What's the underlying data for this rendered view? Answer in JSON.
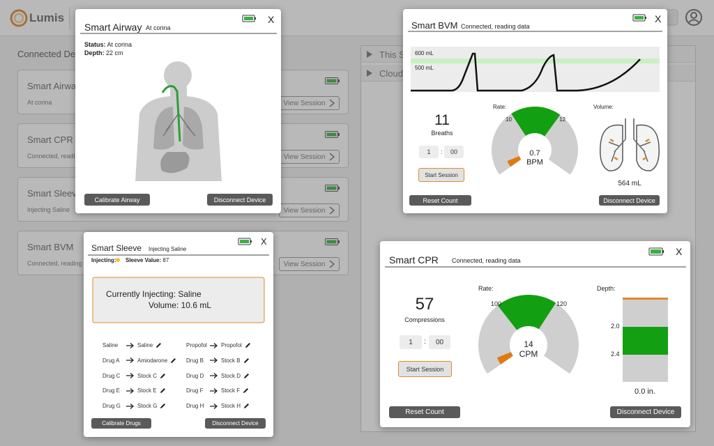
{
  "header": {
    "brand": "Lumis"
  },
  "devices": {
    "title": "Connected Devices",
    "cards": [
      {
        "name": "Smart Airway",
        "status": "At corina",
        "action": "View Session"
      },
      {
        "name": "Smart CPR",
        "status": "Connected, reading data",
        "action": "View Session"
      },
      {
        "name": "Smart Sleeve",
        "status": "Injecting Saline",
        "action": "View Session"
      },
      {
        "name": "Smart BVM",
        "status": "Connected, reading data",
        "action": "View Session"
      }
    ]
  },
  "sessions": {
    "items": [
      "This Session",
      "Cloud Sessions"
    ]
  },
  "airway": {
    "title": "Smart Airway",
    "subtitle": "At corina",
    "close": "X",
    "status_label": "Status:",
    "status": "At corina",
    "depth_label": "Depth:",
    "depth": "22 cm",
    "buttons": [
      "Calibrate Airway",
      "Disconnect Device"
    ]
  },
  "bvm": {
    "title": "Smart BVM",
    "subtitle": "Connected, reading data",
    "close": "X",
    "chart_labels": [
      "600 mL",
      "500 mL"
    ],
    "count": "11",
    "count_label": "Breaths",
    "timer": [
      "1",
      ":",
      "00"
    ],
    "start": "Start Session",
    "reset": "Reset Count",
    "rate_label": "Rate:",
    "rate_ticks": [
      "10",
      "12"
    ],
    "rate_value": "0.7",
    "rate_unit": "BPM",
    "volume_label": "Volume:",
    "volume": "564 mL",
    "disconnect": "Disconnect Device"
  },
  "sleeve": {
    "title": "Smart Sleeve",
    "subtitle": "Injecting Saline",
    "close": "X",
    "injecting_label": "Injecting:",
    "value_label": "Sleeve Value:",
    "value": "87",
    "current": "Currently Injecting: Saline",
    "volume": "Volume: 10.6 mL",
    "mappings": [
      {
        "from": "Saline",
        "to": "Saline"
      },
      {
        "from": "Propofol",
        "to": "Propofol"
      },
      {
        "from": "Drug A",
        "to": "Amiodarone"
      },
      {
        "from": "Drug B",
        "to": "Stock B"
      },
      {
        "from": "Drug C",
        "to": "Stock C"
      },
      {
        "from": "Drug D",
        "to": "Stock D"
      },
      {
        "from": "Drug E",
        "to": "Stock E"
      },
      {
        "from": "Drug F",
        "to": "Stock F"
      },
      {
        "from": "Drug G",
        "to": "Stock G"
      },
      {
        "from": "Drug H",
        "to": "Stock H"
      }
    ],
    "buttons": [
      "Calibrate Drugs",
      "Disconnect Device"
    ]
  },
  "cpr": {
    "title": "Smart CPR",
    "subtitle": "Connected, reading data",
    "close": "X",
    "count": "57",
    "count_label": "Compressions",
    "timer": [
      "1",
      ":",
      "00"
    ],
    "start": "Start Session",
    "reset": "Reset Count",
    "rate_label": "Rate:",
    "rate_ticks": [
      "100",
      "120"
    ],
    "rate_value": "14",
    "rate_unit": "CPM",
    "depth_label": "Depth:",
    "depth_ticks": [
      "2.0",
      "2.4"
    ],
    "depth": "0.0 in.",
    "disconnect": "Disconnect Device"
  }
}
